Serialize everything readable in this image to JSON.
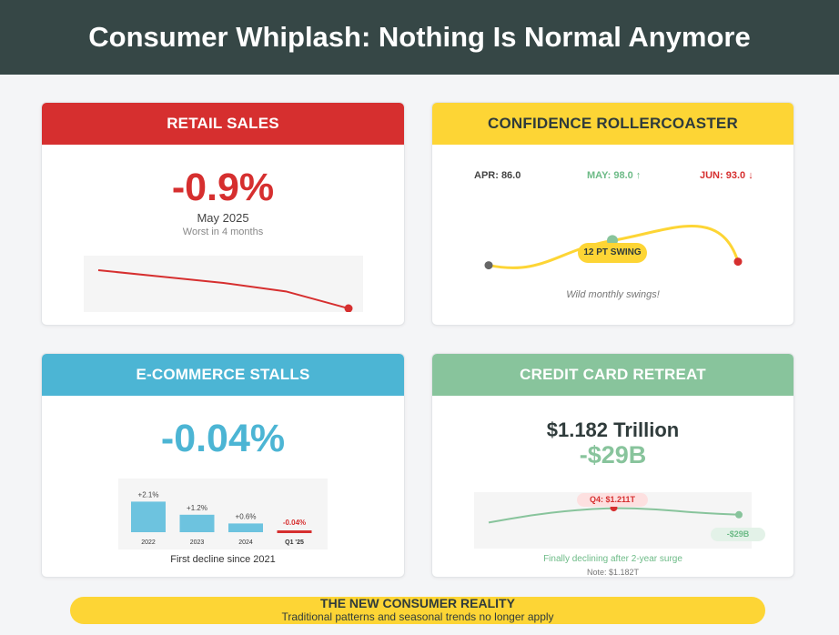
{
  "header": {
    "title": "Consumer Whiplash: Nothing Is Normal Anymore"
  },
  "colors": {
    "banner": "#364746",
    "red": "#d62f2f",
    "yellow": "#fdd535",
    "blue": "#4cb5d4",
    "green": "#88c49c",
    "dark": "#2f3b3b"
  },
  "retail": {
    "title": "RETAIL SALES",
    "value": "-0.9%",
    "period": "May 2025",
    "note": "Worst in 4 months"
  },
  "confidence": {
    "title": "CONFIDENCE ROLLERCOASTER",
    "apr": "APR: 86.0",
    "may": "MAY: 98.0 ↑",
    "jun": "JUN: 93.0 ↓",
    "swing": "12 PT SWING",
    "caption": "Wild monthly swings!"
  },
  "ecommerce": {
    "title": "E-COMMERCE STALLS",
    "value": "-0.04%",
    "caption": "First decline since 2021"
  },
  "credit": {
    "title": "CREDIT CARD RETREAT",
    "total": "$1.182 Trillion",
    "change": "-$29B",
    "peak_label": "Q4: $1.211T",
    "end_label": "-$29B",
    "caption": "Finally declining after 2-year surge",
    "note": "Note: $1.182T"
  },
  "footer": {
    "title": "THE NEW CONSUMER REALITY",
    "subtitle": "Traditional patterns and seasonal trends no longer apply"
  },
  "chart_data": [
    {
      "type": "line",
      "title": "",
      "x": [
        1,
        2,
        3,
        4,
        5
      ],
      "y": [
        0.0,
        -0.15,
        -0.3,
        -0.5,
        -0.9
      ],
      "color": "#d62f2f",
      "note": "unlabeled declining trend, last point highlighted"
    },
    {
      "type": "line",
      "categories": [
        "APR",
        "MAY",
        "JUN"
      ],
      "values": [
        86.0,
        98.0,
        93.0
      ],
      "color": "#fdd535"
    },
    {
      "type": "bar",
      "categories": [
        "2022",
        "2023",
        "2024",
        "Q1 '25"
      ],
      "values": [
        2.1,
        1.2,
        0.6,
        -0.04
      ],
      "data_labels": [
        "+2.1%",
        "+1.2%",
        "+0.6%",
        "-0.04%"
      ],
      "colors": [
        "#6dc3df",
        "#6dc3df",
        "#6dc3df",
        "#d62f2f"
      ]
    },
    {
      "type": "line",
      "values": [
        1.15,
        1.18,
        1.2,
        1.211,
        1.205,
        1.19,
        1.182
      ],
      "highlight": "Q4: $1.211T",
      "color": "#88c49c"
    }
  ]
}
